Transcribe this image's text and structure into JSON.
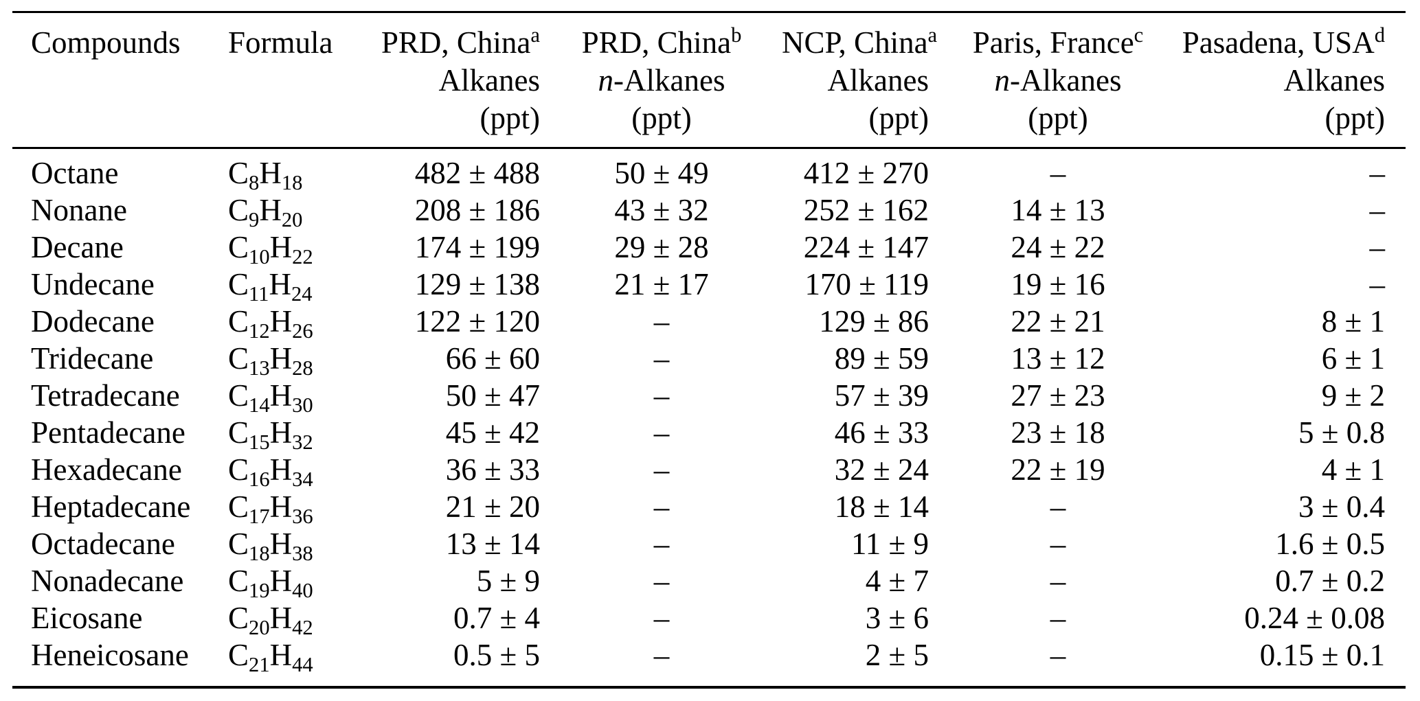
{
  "table": {
    "unit_note": "(ppt)",
    "columns": [
      {
        "id": "compounds",
        "align": "left",
        "lines": [
          [
            {
              "t": "Compounds"
            }
          ]
        ]
      },
      {
        "id": "formula",
        "align": "left",
        "lines": [
          [
            {
              "t": "Formula"
            }
          ]
        ]
      },
      {
        "id": "prd-china-a",
        "align": "right",
        "lines": [
          [
            {
              "t": "PRD, China"
            },
            {
              "t": "a",
              "sup": true
            }
          ],
          [
            {
              "t": "Alkanes"
            }
          ],
          [
            {
              "t": "(ppt)"
            }
          ]
        ]
      },
      {
        "id": "prd-china-b",
        "align": "center",
        "lines": [
          [
            {
              "t": "PRD, China"
            },
            {
              "t": "b",
              "sup": true
            }
          ],
          [
            {
              "t": "n",
              "i": true
            },
            {
              "t": "-Alkanes"
            }
          ],
          [
            {
              "t": "(ppt)"
            }
          ]
        ]
      },
      {
        "id": "ncp-china-a",
        "align": "right",
        "lines": [
          [
            {
              "t": "NCP, China"
            },
            {
              "t": "a",
              "sup": true
            }
          ],
          [
            {
              "t": "Alkanes"
            }
          ],
          [
            {
              "t": "(ppt)"
            }
          ]
        ]
      },
      {
        "id": "paris-france-c",
        "align": "center",
        "lines": [
          [
            {
              "t": "Paris, France"
            },
            {
              "t": "c",
              "sup": true
            }
          ],
          [
            {
              "t": "n",
              "i": true
            },
            {
              "t": "-Alkanes"
            }
          ],
          [
            {
              "t": "(ppt)"
            }
          ]
        ]
      },
      {
        "id": "pasadena-usa-d",
        "align": "right",
        "lines": [
          [
            {
              "t": "Pasadena, USA"
            },
            {
              "t": "d",
              "sup": true
            }
          ],
          [
            {
              "t": "Alkanes"
            }
          ],
          [
            {
              "t": "(ppt)"
            }
          ]
        ]
      }
    ],
    "rows": [
      {
        "compound": "Octane",
        "formula": [
          {
            "t": "C"
          },
          {
            "t": "8",
            "sub": true
          },
          {
            "t": "H"
          },
          {
            "t": "18",
            "sub": true
          }
        ],
        "values": [
          "482 ± 488",
          "50 ± 49",
          "412 ± 270",
          "–",
          "–"
        ]
      },
      {
        "compound": "Nonane",
        "formula": [
          {
            "t": "C"
          },
          {
            "t": "9",
            "sub": true
          },
          {
            "t": "H"
          },
          {
            "t": "20",
            "sub": true
          }
        ],
        "values": [
          "208 ± 186",
          "43 ± 32",
          "252 ± 162",
          "14 ± 13",
          "–"
        ]
      },
      {
        "compound": "Decane",
        "formula": [
          {
            "t": "C"
          },
          {
            "t": "10",
            "sub": true
          },
          {
            "t": "H"
          },
          {
            "t": "22",
            "sub": true
          }
        ],
        "values": [
          "174 ± 199",
          "29 ± 28",
          "224 ± 147",
          "24 ± 22",
          "–"
        ]
      },
      {
        "compound": "Undecane",
        "formula": [
          {
            "t": "C"
          },
          {
            "t": "11",
            "sub": true
          },
          {
            "t": "H"
          },
          {
            "t": "24",
            "sub": true
          }
        ],
        "values": [
          "129 ± 138",
          "21 ± 17",
          "170 ± 119",
          "19 ± 16",
          "–"
        ]
      },
      {
        "compound": "Dodecane",
        "formula": [
          {
            "t": "C"
          },
          {
            "t": "12",
            "sub": true
          },
          {
            "t": "H"
          },
          {
            "t": "26",
            "sub": true
          }
        ],
        "values": [
          "122 ± 120",
          "–",
          "129 ± 86",
          "22 ± 21",
          "8 ± 1"
        ]
      },
      {
        "compound": "Tridecane",
        "formula": [
          {
            "t": "C"
          },
          {
            "t": "13",
            "sub": true
          },
          {
            "t": "H"
          },
          {
            "t": "28",
            "sub": true
          }
        ],
        "values": [
          "66 ± 60",
          "–",
          "89 ± 59",
          "13 ± 12",
          "6 ± 1"
        ]
      },
      {
        "compound": "Tetradecane",
        "formula": [
          {
            "t": "C"
          },
          {
            "t": "14",
            "sub": true
          },
          {
            "t": "H"
          },
          {
            "t": "30",
            "sub": true
          }
        ],
        "values": [
          "50 ± 47",
          "–",
          "57 ± 39",
          "27 ± 23",
          "9 ± 2"
        ]
      },
      {
        "compound": "Pentadecane",
        "formula": [
          {
            "t": "C"
          },
          {
            "t": "15",
            "sub": true
          },
          {
            "t": "H"
          },
          {
            "t": "32",
            "sub": true
          }
        ],
        "values": [
          "45 ± 42",
          "–",
          "46 ± 33",
          "23 ± 18",
          "5 ± 0.8"
        ]
      },
      {
        "compound": "Hexadecane",
        "formula": [
          {
            "t": "C"
          },
          {
            "t": "16",
            "sub": true
          },
          {
            "t": "H"
          },
          {
            "t": "34",
            "sub": true
          }
        ],
        "values": [
          "36 ± 33",
          "–",
          "32 ± 24",
          "22 ± 19",
          "4 ± 1"
        ]
      },
      {
        "compound": "Heptadecane",
        "formula": [
          {
            "t": "C"
          },
          {
            "t": "17",
            "sub": true
          },
          {
            "t": "H"
          },
          {
            "t": "36",
            "sub": true
          }
        ],
        "values": [
          "21 ± 20",
          "–",
          "18 ± 14",
          "–",
          "3 ± 0.4"
        ]
      },
      {
        "compound": "Octadecane",
        "formula": [
          {
            "t": "C"
          },
          {
            "t": "18",
            "sub": true
          },
          {
            "t": "H"
          },
          {
            "t": "38",
            "sub": true
          }
        ],
        "values": [
          "13 ± 14",
          "–",
          "11 ± 9",
          "–",
          "1.6 ± 0.5"
        ]
      },
      {
        "compound": "Nonadecane",
        "formula": [
          {
            "t": "C"
          },
          {
            "t": "19",
            "sub": true
          },
          {
            "t": "H"
          },
          {
            "t": "40",
            "sub": true
          }
        ],
        "values": [
          "5 ± 9",
          "–",
          "4 ± 7",
          "–",
          "0.7 ± 0.2"
        ]
      },
      {
        "compound": "Eicosane",
        "formula": [
          {
            "t": "C"
          },
          {
            "t": "20",
            "sub": true
          },
          {
            "t": "H"
          },
          {
            "t": "42",
            "sub": true
          }
        ],
        "values": [
          "0.7 ± 4",
          "–",
          "3 ± 6",
          "–",
          "0.24 ± 0.08"
        ]
      },
      {
        "compound": "Heneicosane",
        "formula": [
          {
            "t": "C"
          },
          {
            "t": "21",
            "sub": true
          },
          {
            "t": "H"
          },
          {
            "t": "44",
            "sub": true
          }
        ],
        "values": [
          "0.5 ± 5",
          "–",
          "2 ± 5",
          "–",
          "0.15 ± 0.1"
        ]
      }
    ]
  }
}
